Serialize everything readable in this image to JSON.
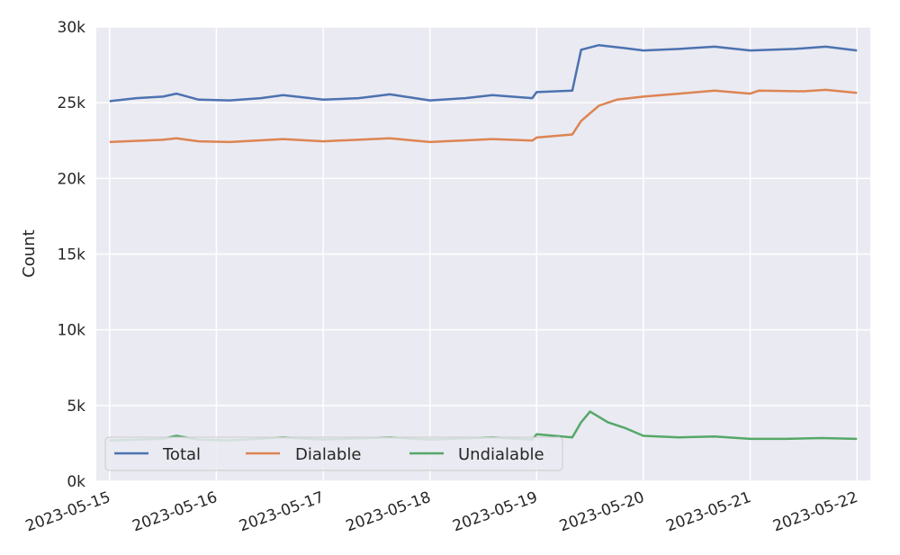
{
  "chart_data": {
    "type": "line",
    "title": "",
    "xlabel": "",
    "ylabel": "Count",
    "x_ticks": [
      "2023-05-15",
      "2023-05-16",
      "2023-05-17",
      "2023-05-18",
      "2023-05-19",
      "2023-05-20",
      "2023-05-21",
      "2023-05-22"
    ],
    "y_ticks": [
      "0k",
      "5k",
      "10k",
      "15k",
      "20k",
      "25k",
      "30k"
    ],
    "ylim": [
      0,
      30000
    ],
    "xlim": [
      "2023-05-14 21:00",
      "2023-05-22 03:00"
    ],
    "grid": true,
    "legend": {
      "position": "lower-left",
      "columns": 3
    },
    "colors": {
      "background": "#eaeaf2",
      "grid": "#ffffff",
      "Total": "#4c72b0",
      "Dialable": "#dd8452",
      "Undialable": "#55a868"
    },
    "series": [
      {
        "name": "Total",
        "points": [
          [
            "2023-05-15 00:00",
            25100
          ],
          [
            "2023-05-15 06:00",
            25300
          ],
          [
            "2023-05-15 12:00",
            25400
          ],
          [
            "2023-05-15 15:00",
            25600
          ],
          [
            "2023-05-15 20:00",
            25200
          ],
          [
            "2023-05-16 03:00",
            25150
          ],
          [
            "2023-05-16 10:00",
            25300
          ],
          [
            "2023-05-16 15:00",
            25500
          ],
          [
            "2023-05-17 00:00",
            25200
          ],
          [
            "2023-05-17 08:00",
            25300
          ],
          [
            "2023-05-17 15:00",
            25550
          ],
          [
            "2023-05-18 00:00",
            25150
          ],
          [
            "2023-05-18 08:00",
            25300
          ],
          [
            "2023-05-18 14:00",
            25500
          ],
          [
            "2023-05-18 23:00",
            25300
          ],
          [
            "2023-05-19 00:00",
            25700
          ],
          [
            "2023-05-19 08:00",
            25800
          ],
          [
            "2023-05-19 10:00",
            28500
          ],
          [
            "2023-05-19 14:00",
            28800
          ],
          [
            "2023-05-19 20:00",
            28600
          ],
          [
            "2023-05-20 00:00",
            28450
          ],
          [
            "2023-05-20 08:00",
            28550
          ],
          [
            "2023-05-20 16:00",
            28700
          ],
          [
            "2023-05-21 00:00",
            28450
          ],
          [
            "2023-05-21 10:00",
            28550
          ],
          [
            "2023-05-21 17:00",
            28700
          ],
          [
            "2023-05-22 00:00",
            28450
          ]
        ]
      },
      {
        "name": "Dialable",
        "points": [
          [
            "2023-05-15 00:00",
            22400
          ],
          [
            "2023-05-15 12:00",
            22550
          ],
          [
            "2023-05-15 15:00",
            22650
          ],
          [
            "2023-05-15 20:00",
            22450
          ],
          [
            "2023-05-16 03:00",
            22400
          ],
          [
            "2023-05-16 15:00",
            22600
          ],
          [
            "2023-05-17 00:00",
            22450
          ],
          [
            "2023-05-17 15:00",
            22650
          ],
          [
            "2023-05-18 00:00",
            22400
          ],
          [
            "2023-05-18 14:00",
            22600
          ],
          [
            "2023-05-18 23:00",
            22500
          ],
          [
            "2023-05-19 00:00",
            22700
          ],
          [
            "2023-05-19 08:00",
            22900
          ],
          [
            "2023-05-19 10:00",
            23800
          ],
          [
            "2023-05-19 14:00",
            24800
          ],
          [
            "2023-05-19 18:00",
            25200
          ],
          [
            "2023-05-20 00:00",
            25400
          ],
          [
            "2023-05-20 08:00",
            25600
          ],
          [
            "2023-05-20 16:00",
            25800
          ],
          [
            "2023-05-21 00:00",
            25600
          ],
          [
            "2023-05-21 02:00",
            25800
          ],
          [
            "2023-05-21 12:00",
            25750
          ],
          [
            "2023-05-21 17:00",
            25850
          ],
          [
            "2023-05-22 00:00",
            25650
          ]
        ]
      },
      {
        "name": "Undialable",
        "points": [
          [
            "2023-05-15 00:00",
            2700
          ],
          [
            "2023-05-15 12:00",
            2800
          ],
          [
            "2023-05-15 15:00",
            3000
          ],
          [
            "2023-05-15 20:00",
            2750
          ],
          [
            "2023-05-16 03:00",
            2700
          ],
          [
            "2023-05-16 15:00",
            2900
          ],
          [
            "2023-05-17 00:00",
            2750
          ],
          [
            "2023-05-17 15:00",
            2900
          ],
          [
            "2023-05-18 00:00",
            2750
          ],
          [
            "2023-05-18 14:00",
            2900
          ],
          [
            "2023-05-18 23:00",
            2750
          ],
          [
            "2023-05-19 00:00",
            3100
          ],
          [
            "2023-05-19 08:00",
            2900
          ],
          [
            "2023-05-19 10:00",
            3900
          ],
          [
            "2023-05-19 12:00",
            4600
          ],
          [
            "2023-05-19 16:00",
            3900
          ],
          [
            "2023-05-19 20:00",
            3500
          ],
          [
            "2023-05-20 00:00",
            3000
          ],
          [
            "2023-05-20 08:00",
            2900
          ],
          [
            "2023-05-20 16:00",
            2950
          ],
          [
            "2023-05-21 00:00",
            2800
          ],
          [
            "2023-05-21 08:00",
            2800
          ],
          [
            "2023-05-21 16:00",
            2850
          ],
          [
            "2023-05-22 00:00",
            2800
          ]
        ]
      }
    ]
  }
}
